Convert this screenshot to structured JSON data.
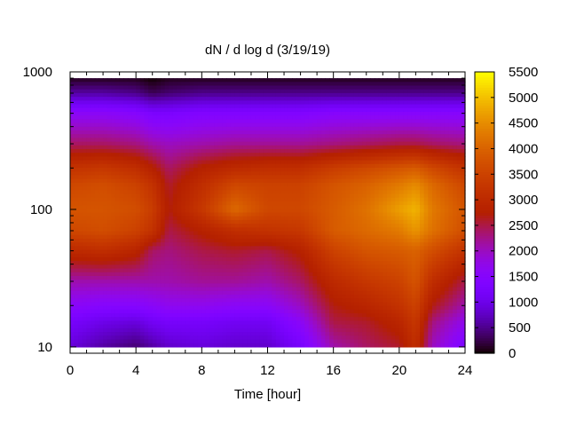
{
  "chart_data": {
    "type": "heatmap",
    "title": "dN / d log d (3/19/19)",
    "xlabel": "Time [hour]",
    "ylabel": "",
    "xlim": [
      0,
      24
    ],
    "ylim": [
      9,
      1000
    ],
    "y_scale": "log",
    "x_ticks": [
      "0",
      "4",
      "8",
      "12",
      "16",
      "20",
      "24"
    ],
    "y_ticks": [
      "10",
      "100",
      "1000"
    ],
    "colorbar": {
      "range": [
        0,
        5500
      ],
      "ticks": [
        "0",
        "500",
        "1000",
        "1500",
        "2000",
        "2500",
        "3000",
        "3500",
        "4000",
        "4500",
        "5000",
        "5500"
      ],
      "colormap": "gnuplot rgbformulae 7,5,15 (black-blue-purple-red-orange-yellow)"
    },
    "grid": false,
    "legend": "none",
    "x_hours": [
      0,
      2,
      4,
      5,
      6,
      8,
      10,
      12,
      14,
      16,
      18,
      20,
      21,
      22,
      24
    ],
    "y_diameters": [
      10,
      15,
      20,
      30,
      50,
      70,
      100,
      150,
      200,
      300,
      500,
      700,
      900
    ],
    "values": [
      [
        900,
        600,
        400,
        600,
        800,
        900,
        800,
        800,
        1200,
        2100,
        2400,
        2600,
        3100,
        2000,
        1300
      ],
      [
        1200,
        1000,
        900,
        1100,
        1200,
        1200,
        1100,
        1100,
        1600,
        2500,
        2600,
        2900,
        3300,
        2300,
        1700
      ],
      [
        1600,
        1500,
        1500,
        1600,
        1700,
        1700,
        1600,
        1600,
        2000,
        2700,
        2900,
        3200,
        3500,
        2700,
        2100
      ],
      [
        2100,
        2100,
        2100,
        2100,
        2100,
        2200,
        2200,
        2100,
        2400,
        3000,
        3300,
        3500,
        3800,
        3100,
        2500
      ],
      [
        3000,
        3100,
        2900,
        2400,
        2300,
        2500,
        2600,
        2500,
        2800,
        3500,
        3800,
        3900,
        4000,
        3700,
        3200
      ],
      [
        3600,
        3700,
        3500,
        3200,
        2500,
        2800,
        3100,
        3200,
        3300,
        3900,
        4100,
        4300,
        4600,
        4200,
        3700
      ],
      [
        3800,
        3800,
        3700,
        3400,
        2700,
        3300,
        4100,
        3600,
        3600,
        3900,
        4200,
        4700,
        4900,
        4300,
        3800
      ],
      [
        3600,
        3700,
        3500,
        3200,
        2600,
        3100,
        3600,
        3500,
        3500,
        3800,
        4000,
        4300,
        4500,
        4100,
        3600
      ],
      [
        3200,
        3300,
        3100,
        2800,
        2400,
        2800,
        3000,
        3100,
        3100,
        3400,
        3600,
        3800,
        3900,
        3600,
        3200
      ],
      [
        2400,
        2400,
        2300,
        2100,
        2000,
        2100,
        2200,
        2200,
        2200,
        2300,
        2400,
        2500,
        2500,
        2400,
        2300
      ],
      [
        1600,
        1600,
        1500,
        1300,
        1300,
        1400,
        1400,
        1400,
        1400,
        1500,
        1500,
        1500,
        1500,
        1500,
        1500
      ],
      [
        600,
        600,
        500,
        300,
        400,
        500,
        500,
        500,
        500,
        500,
        500,
        500,
        500,
        500,
        500
      ],
      [
        100,
        100,
        100,
        0,
        100,
        100,
        100,
        100,
        100,
        100,
        100,
        100,
        100,
        100,
        100
      ]
    ]
  }
}
